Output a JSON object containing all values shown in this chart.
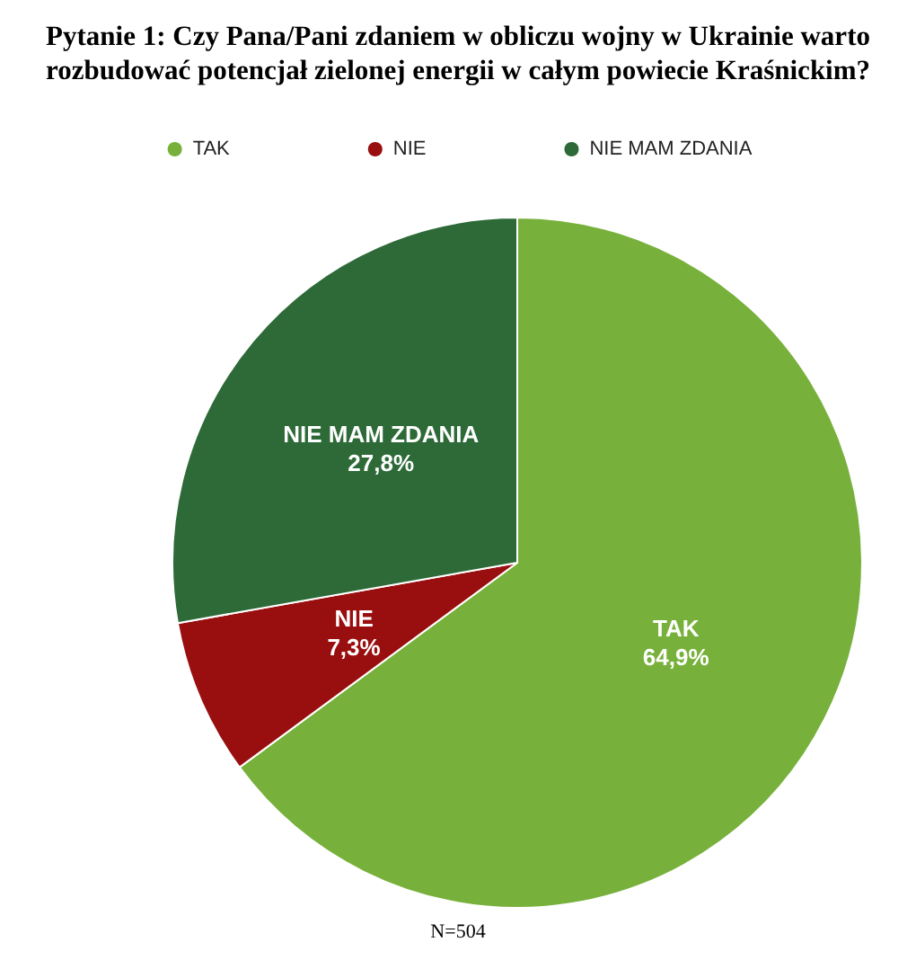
{
  "chart_data": {
    "type": "pie",
    "title": "Pytanie 1: Czy Pana/Pani zdaniem w obliczu wojny w Ukrainie warto\nrozbudować potencjał zielonej energii w całym powiecie Kraśnickim?",
    "categories": [
      "TAK",
      "NIE",
      "NIE MAM ZDANIA"
    ],
    "values": [
      64.9,
      7.3,
      27.8
    ],
    "value_labels": [
      "64,9%",
      "7,3%",
      "27,8%"
    ],
    "colors": [
      "#77b13b",
      "#990e0e",
      "#2d6a37"
    ],
    "legend": "top",
    "annotations": [
      "N=504"
    ]
  }
}
